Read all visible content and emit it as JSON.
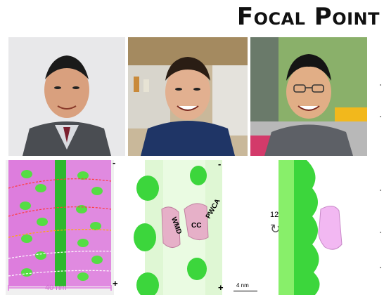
{
  "header": {
    "title": "Focal Point"
  },
  "figure": {
    "minus_label": "-",
    "plus_label": "+",
    "scale_40": "40 nm",
    "scale_4": "4 nm",
    "angle": "120°",
    "rotate_glyph": "↻",
    "domain_labels": {
      "wmd": "WMD",
      "cc": "CC",
      "pwca": "PWCA"
    }
  },
  "colors": {
    "accent_magenta": "#e07be0",
    "accent_green": "#3cd63c"
  }
}
